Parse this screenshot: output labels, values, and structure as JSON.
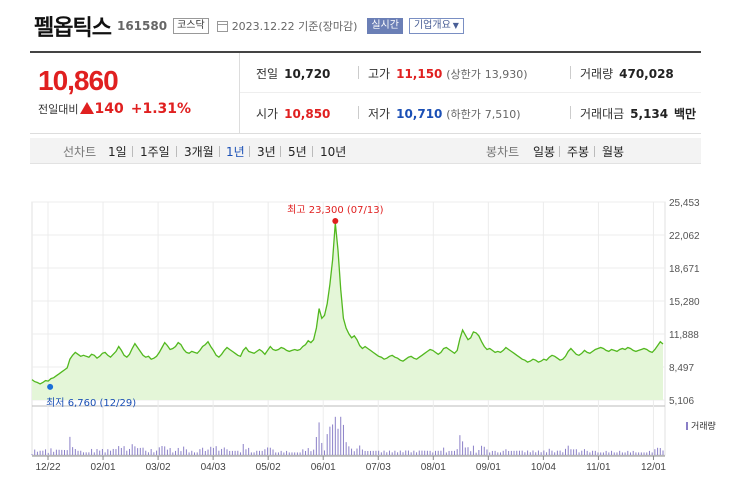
{
  "header": {
    "stock_name": "펠옵틱스",
    "stock_code": "161580",
    "market": "코스닥",
    "date": "2023.12.22",
    "date_suffix": "기준(장마감)",
    "realtime_label": "실시간",
    "company_info_label": "기업개요"
  },
  "price": {
    "current": "10,860",
    "change_label": "전일대비",
    "change_amount": "140",
    "change_percent": "+1.31%"
  },
  "summary": {
    "prev_close_label": "전일",
    "prev_close": "10,720",
    "high_label": "고가",
    "high": "11,150",
    "upper_limit_label": "(상한가",
    "upper_limit": "13,930)",
    "volume_label": "거래량",
    "volume": "470,028",
    "open_label": "시가",
    "open": "10,850",
    "low_label": "저가",
    "low": "10,710",
    "lower_limit_label": "(하한가",
    "lower_limit": "7,510)",
    "turnover_label": "거래대금",
    "turnover": "5,134",
    "turnover_unit": "백만"
  },
  "period_tabs": {
    "line_label": "선차트",
    "line_options": [
      "1일",
      "1주일",
      "3개월",
      "1년",
      "3년",
      "5년",
      "10년"
    ],
    "active": "1년",
    "candle_label": "봉차트",
    "candle_options": [
      "일봉",
      "주봉",
      "월봉"
    ]
  },
  "chart_data": {
    "type": "area",
    "y_ticks": [
      "25,453",
      "22,062",
      "18,671",
      "15,280",
      "11,888",
      "8,497",
      "5,106"
    ],
    "ylim": [
      5106,
      25453
    ],
    "x_ticks": [
      "12/22",
      "02/01",
      "03/02",
      "04/03",
      "05/02",
      "06/01",
      "07/03",
      "08/01",
      "09/01",
      "10/04",
      "11/01",
      "12/01"
    ],
    "high_annotation": "최고 23,300 (07/13)",
    "low_annotation": "최저 6,760 (12/29)",
    "high_value": 23300,
    "low_value": 6760,
    "volume_label": "거래량",
    "line_color": "#52b81f",
    "fill_color": "#e4f6d8",
    "volume_color": "#8a7fc7",
    "series": [
      {
        "values": [
          7200,
          7000,
          6900,
          6760,
          6900,
          7100,
          7050,
          7300,
          7400,
          7600,
          7800,
          8000,
          8200,
          8400,
          9300,
          9700,
          10000,
          9800,
          9600,
          9700,
          9600,
          9500,
          9800,
          9700,
          9400,
          9600,
          9900,
          10000,
          9700,
          9500,
          9800,
          10100,
          10600,
          10200,
          9700,
          9500,
          9800,
          10400,
          10900,
          10500,
          10100,
          9700,
          9500,
          9600,
          9300,
          9400,
          9600,
          10000,
          10500,
          11000,
          10700,
          10300,
          10400,
          10600,
          11000,
          10800,
          10300,
          10000,
          9900,
          10100,
          10000,
          9900,
          10200,
          10600,
          10800,
          11100,
          10600,
          10200,
          9700,
          9500,
          9800,
          10200,
          10500,
          10300,
          10100,
          9900,
          9700,
          9600,
          10200,
          10500,
          10100,
          10000,
          9900,
          10100,
          10300,
          10100,
          9800,
          10200,
          10600,
          10300,
          10200,
          10300,
          10500,
          10400,
          10200,
          10100,
          10200,
          10300,
          10200,
          10300,
          10600,
          10800,
          11200,
          11000,
          11300,
          12500,
          14500,
          13500,
          13800,
          15000,
          17000,
          19500,
          23300,
          20500,
          16500,
          13500,
          12500,
          11900,
          11500,
          11700,
          11300,
          10700,
          10400,
          10600,
          10400,
          10200,
          10000,
          9800,
          9600,
          9500,
          9300,
          9400,
          9600,
          9700,
          9500,
          9400,
          9200,
          9100,
          9300,
          9500,
          9600,
          9400,
          9300,
          9500,
          9700,
          9900,
          10100,
          10300,
          10200,
          10000,
          9800,
          10000,
          10400,
          10500,
          10300,
          10100,
          9900,
          10200,
          11400,
          12300,
          11800,
          11300,
          11500,
          12100,
          12000,
          11700,
          11100,
          10600,
          10300,
          10400,
          10200,
          10000,
          10100,
          10000,
          10200,
          10500,
          10300,
          10100,
          9900,
          9700,
          9500,
          9300,
          9200,
          9000,
          9100,
          9300,
          9200,
          9000,
          9100,
          9300,
          9200,
          9500,
          9700,
          9600,
          9400,
          9200,
          9300,
          9600,
          10100,
          10400,
          10100,
          9800,
          9700,
          9900,
          10200,
          10000,
          9900,
          10100,
          10300,
          10400,
          10500,
          10400,
          10200,
          10100,
          10300,
          10200,
          10100,
          10300,
          10400,
          10300,
          10500,
          10400,
          10200,
          10100,
          10200,
          10300,
          10400,
          10300,
          10100,
          10000,
          10300,
          10700,
          11100,
          10860
        ]
      }
    ]
  }
}
